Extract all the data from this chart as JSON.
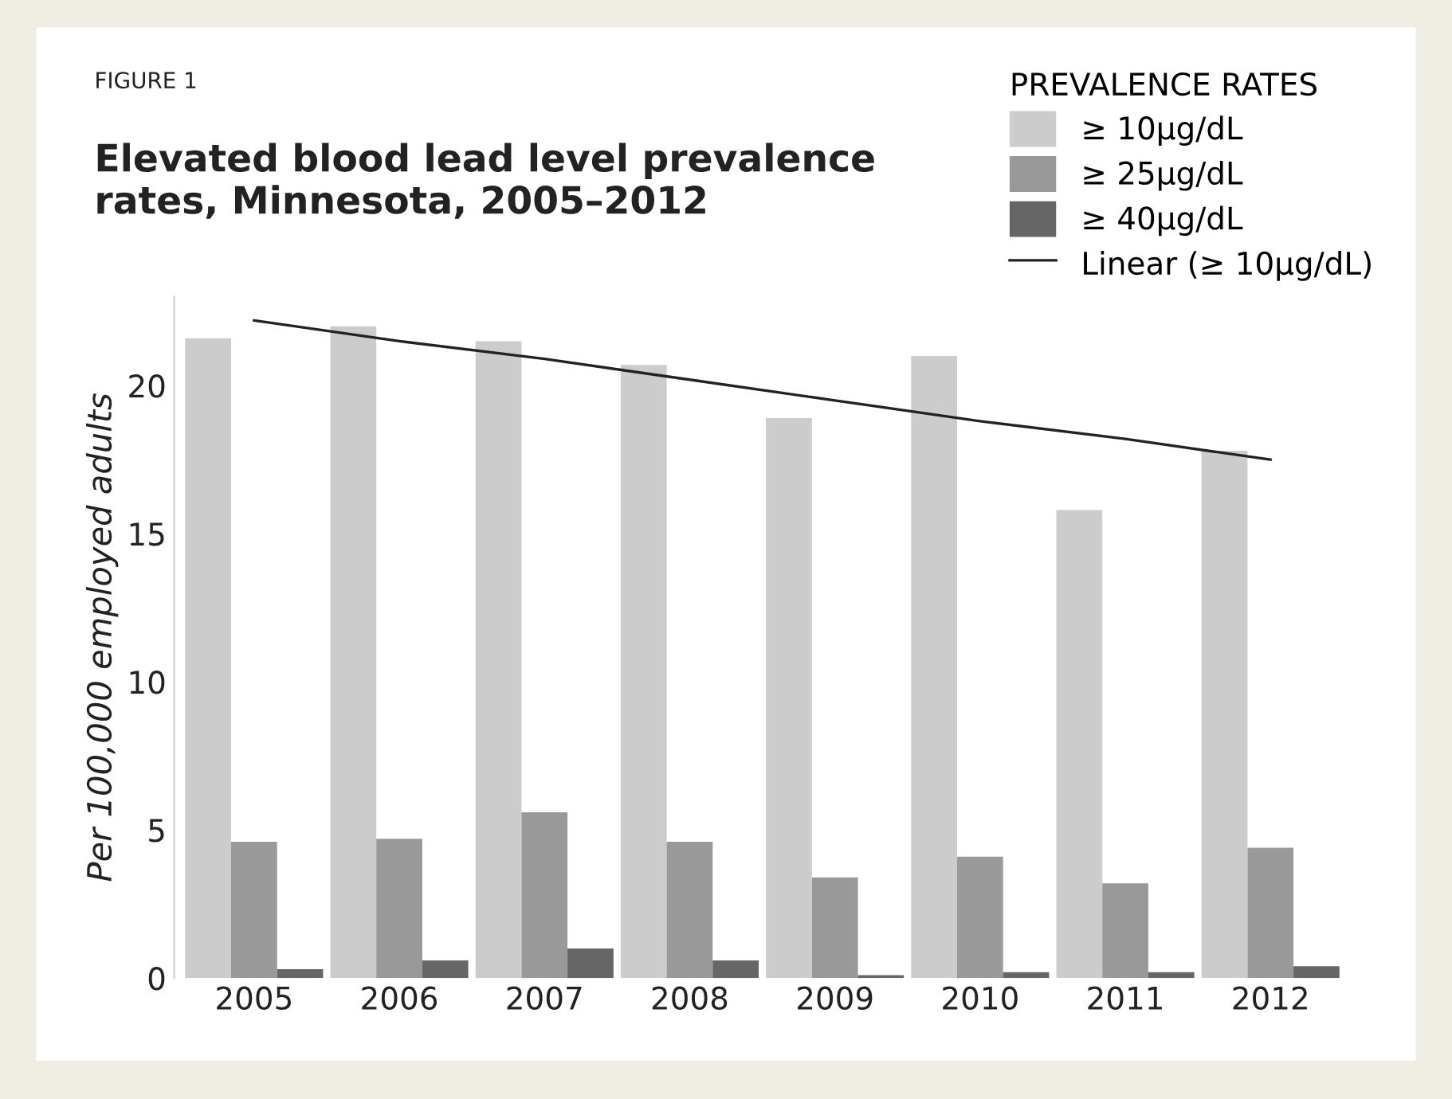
{
  "chart_data": {
    "type": "bar",
    "title": "Elevated blood lead level prevalence\nrates, Minnesota, 2005–2012",
    "ylabel": "Per 100,000 employed adults",
    "legend_title": "PREVALENCE RATES",
    "annotations": [
      "FIGURE 1"
    ],
    "categories": [
      "2005",
      "2006",
      "2007",
      "2008",
      "2009",
      "2010",
      "2011",
      "2012"
    ],
    "series": [
      {
        "name": "≥ 10µg/dL",
        "color": "#cccccc",
        "values": [
          21.6,
          22.0,
          21.5,
          20.7,
          18.9,
          21.0,
          15.8,
          17.8
        ]
      },
      {
        "name": "≥ 25µg/dL",
        "color": "#999999",
        "values": [
          4.6,
          4.7,
          5.6,
          4.6,
          3.4,
          4.1,
          3.2,
          4.4
        ]
      },
      {
        "name": "≥ 40µg/dL",
        "color": "#666666",
        "values": [
          0.3,
          0.6,
          1.0,
          0.6,
          0.1,
          0.2,
          0.2,
          0.4
        ]
      },
      {
        "name": "Linear (≥ 10µg/dL)",
        "type": "line",
        "color": "#222222",
        "values": [
          22.2,
          21.5,
          20.9,
          20.2,
          19.5,
          18.8,
          18.2,
          17.5
        ]
      }
    ],
    "ylim": [
      0,
      23
    ],
    "yticks": [
      0,
      5,
      10,
      15,
      20
    ],
    "grid": false,
    "legend": "top right"
  }
}
